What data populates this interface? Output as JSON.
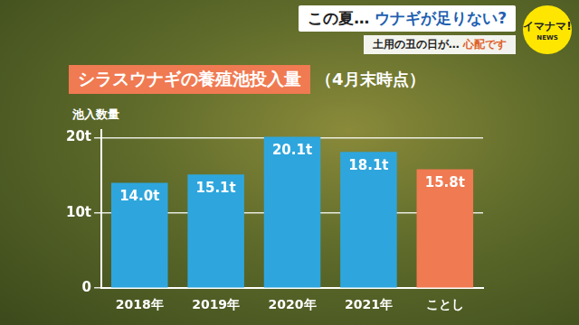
{
  "banner": {
    "headline": [
      "この夏…",
      "ウナギが足りない?"
    ],
    "subheadline": [
      "土用の丑の日が…",
      "心配です"
    ]
  },
  "logo": {
    "text": "イマナマ!",
    "sub": "NEWS"
  },
  "chart_data": {
    "type": "bar",
    "title": "シラスウナギの養殖池投入量",
    "subtitle": "（4月末時点）",
    "y_label": "池入数量",
    "categories": [
      "2018年",
      "2019年",
      "2020年",
      "2021年",
      "ことし"
    ],
    "values": [
      14.0,
      15.1,
      20.1,
      18.1,
      15.8
    ],
    "value_labels": [
      "14.0t",
      "15.1t",
      "20.1t",
      "18.1t",
      "15.8t"
    ],
    "colors": [
      "#2ea6dd",
      "#2ea6dd",
      "#2ea6dd",
      "#2ea6dd",
      "#f07a52"
    ],
    "ylim": [
      0,
      21
    ],
    "yticks": [
      {
        "value": 0,
        "label": "0"
      },
      {
        "value": 10,
        "label": "10t"
      },
      {
        "value": 20,
        "label": "20t"
      }
    ],
    "grid": true,
    "data_labels": true
  }
}
